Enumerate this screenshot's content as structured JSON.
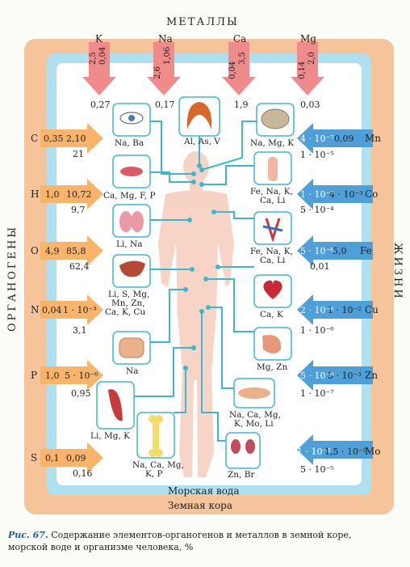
{
  "header": "МЕТАЛЛЫ",
  "left_side_label": "ОРГАНОГЕНЫ",
  "right_side_label": "ЖИЗНИ",
  "footer_sea": "Морская вода",
  "footer_crust": "Земная кора",
  "caption": {
    "figure": "Рис. 67.",
    "text": "Содержание элементов-органогенов и металлов в земной коре,",
    "text2": "морской воде и организме человека, %"
  },
  "top_metals": [
    {
      "symbol": "K",
      "crust": "2,5",
      "sea": "0,04",
      "body": "0,27"
    },
    {
      "symbol": "Na",
      "crust": "2,6",
      "sea": "1,06",
      "body": "0,17"
    },
    {
      "symbol": "Ca",
      "crust": "0,04",
      "sea": "3,5",
      "body": "1,9"
    },
    {
      "symbol": "Mg",
      "crust": "0,14",
      "sea": "2,0",
      "body": "0,03"
    }
  ],
  "organogens": [
    {
      "symbol": "C",
      "crust": "0,35",
      "sea": "2,10",
      "body": "21"
    },
    {
      "symbol": "H",
      "crust": "1,0",
      "sea": "10,72",
      "body": "9,7"
    },
    {
      "symbol": "O",
      "crust": "4,9",
      "sea": "85,8",
      "body": "62,4"
    },
    {
      "symbol": "N",
      "crust": "0,04",
      "sea": "1 · 10⁻³",
      "body": "3,1"
    },
    {
      "symbol": "P",
      "crust": "1,0",
      "sea": "5 · 10⁻⁶",
      "body": "0,95"
    },
    {
      "symbol": "S",
      "crust": "0,1",
      "sea": "0,09",
      "body": "0,16"
    }
  ],
  "trace": [
    {
      "symbol": "Mn",
      "crust": "0,09",
      "sea": "4 · 10⁻⁷",
      "body": "1 · 10⁻⁵"
    },
    {
      "symbol": "Co",
      "crust": "4 · 10⁻³",
      "sea": "1 · 10⁻⁷",
      "body": "5 · 10⁻⁴"
    },
    {
      "symbol": "Fe",
      "crust": "5,0",
      "sea": "5 · 10⁻⁶",
      "body": "0,01"
    },
    {
      "symbol": "Cu",
      "crust": "1 · 10⁻²",
      "sea": "2 · 10⁻⁶",
      "body": "1 · 10⁻⁶"
    },
    {
      "symbol": "Zn",
      "crust": "5 · 10⁻³",
      "sea": "5 · 10⁻⁶",
      "body": "1 · 10⁻⁷"
    },
    {
      "symbol": "Mo",
      "crust": "1,5 · 10⁻²",
      "sea": "1 · 10⁻³",
      "body": "5 · 10⁻⁵"
    }
  ],
  "organs": {
    "eye": "Na, Ba",
    "hair": "Al, As, V",
    "brain": "Na, Mg, K",
    "lips": "Ca, Mg, F, P",
    "larynx": "Fe, Na, K,",
    "larynx2": "Ca, Li",
    "lungs": "Li, Na",
    "vessels": "Fe, Na, K,",
    "vessels2": "Ca, Li",
    "liver": "Li, S, Mg,",
    "liver2": "Mn, Zn,",
    "liver3": "Ca, K, Cu",
    "heart": "Ca, K",
    "intestine": "Na",
    "stomach": "Mg, Zn",
    "muscle": "Li, Mg, K",
    "pancreas": "Na, Ca, Mg,",
    "pancreas2": "K, Mo, Li",
    "bone": "Na, Ca, Mg,",
    "bone2": "K, P",
    "kidney": "Zn, Br"
  },
  "colors": {
    "crust": "#f6c49a",
    "sea": "#aee0ef",
    "metal_arrow": "#ef8b8b",
    "organ_arrow": "#f7b46a",
    "trace_arrow": "#4f9fd8",
    "line": "#3bb8cf",
    "body": "#f6cfbf"
  }
}
